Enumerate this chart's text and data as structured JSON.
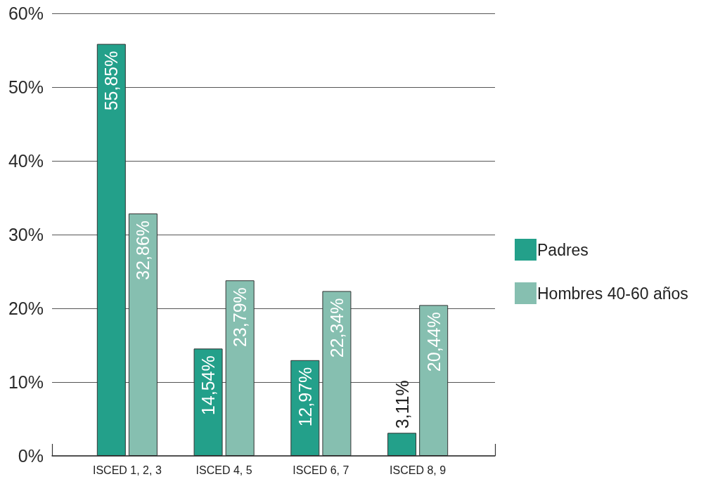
{
  "chart_data": {
    "type": "bar",
    "categories": [
      "ISCED 1, 2, 3",
      "ISCED 4, 5",
      "ISCED 6, 7",
      "ISCED 8, 9"
    ],
    "series": [
      {
        "name": "Padres",
        "color": "#23a08a",
        "values": [
          55.85,
          14.54,
          12.97,
          3.11
        ],
        "value_labels": [
          "55,85%",
          "14,54%",
          "12,97%",
          "3,11%"
        ]
      },
      {
        "name": "Hombres 40-60 años",
        "color": "#86bfb0",
        "values": [
          32.86,
          23.79,
          22.34,
          20.44
        ],
        "value_labels": [
          "32,86%",
          "23,79%",
          "22,34%",
          "20,44%"
        ]
      }
    ],
    "ylim": [
      0,
      60
    ],
    "yticks": [
      {
        "value": 0,
        "label": "0%"
      },
      {
        "value": 10,
        "label": "10%"
      },
      {
        "value": 20,
        "label": "20%"
      },
      {
        "value": 30,
        "label": "30%"
      },
      {
        "value": 40,
        "label": "40%"
      },
      {
        "value": 50,
        "label": "50%"
      },
      {
        "value": 60,
        "label": "60%"
      }
    ],
    "grid": "y",
    "legend": "right"
  }
}
